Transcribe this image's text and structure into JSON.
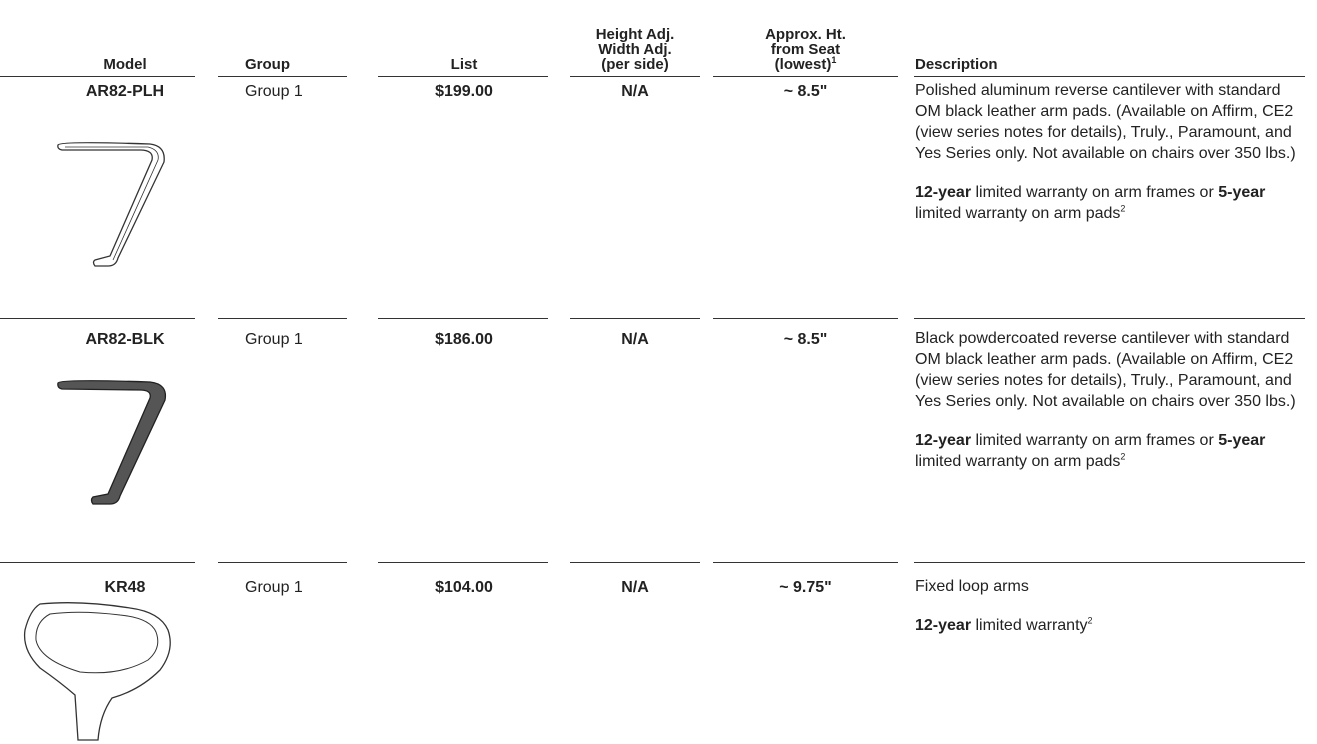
{
  "table": {
    "columns": [
      [
        [
          {
            "text": "Model"
          }
        ]
      ],
      [
        [
          {
            "text": "Group"
          }
        ]
      ],
      [
        [
          {
            "text": "List"
          }
        ]
      ],
      [
        [
          {
            "text": "Height Adj."
          }
        ],
        [
          {
            "text": "Width Adj."
          }
        ],
        [
          {
            "text": "(per side)"
          }
        ]
      ],
      [
        [
          {
            "text": "Approx. Ht."
          }
        ],
        [
          {
            "text": "from Seat"
          }
        ],
        [
          {
            "text": "(lowest)"
          },
          {
            "text": "1",
            "sup": true
          }
        ]
      ],
      [
        [
          {
            "text": "Description"
          }
        ]
      ]
    ],
    "rows": [
      {
        "model": "AR82-PLH",
        "group": "Group 1",
        "list": "$199.00",
        "adjust": "N/A",
        "height": "~ 8.5\"",
        "description": [
          [
            {
              "text": "Polished aluminum reverse cantilever with standard OM black leather arm pads. (Available on Affirm, CE2 (view series notes for details), Truly., Paramount, and Yes Series only. Not available on chairs over 350 lbs.)"
            }
          ],
          [
            {
              "text": "12-year",
              "bold": true
            },
            {
              "text": " limited warranty on arm frames or "
            },
            {
              "text": "5-year",
              "bold": true
            },
            {
              "text": " limited warranty on arm pads"
            },
            {
              "text": "2",
              "sup": true
            }
          ]
        ]
      },
      {
        "model": "AR82-BLK",
        "group": "Group 1",
        "list": "$186.00",
        "adjust": "N/A",
        "height": "~ 8.5\"",
        "description": [
          [
            {
              "text": "Black powdercoated reverse cantilever with standard OM black leather arm pads. (Available on Affirm, CE2 (view series notes for details), Truly., Paramount, and Yes Series only. Not available on chairs over 350 lbs.)"
            }
          ],
          [
            {
              "text": "12-year",
              "bold": true
            },
            {
              "text": " limited warranty on arm frames or "
            },
            {
              "text": "5-year",
              "bold": true
            },
            {
              "text": " limited warranty on arm pads"
            },
            {
              "text": "2",
              "sup": true
            }
          ]
        ]
      },
      {
        "model": "KR48",
        "group": "Group 1",
        "list": "$104.00",
        "adjust": "N/A",
        "height": "~ 9.75\"",
        "description": [
          [
            {
              "text": "Fixed loop arms"
            }
          ],
          [
            {
              "text": "12-year",
              "bold": true
            },
            {
              "text": " limited warranty"
            },
            {
              "text": "2",
              "sup": true
            }
          ]
        ]
      }
    ]
  }
}
